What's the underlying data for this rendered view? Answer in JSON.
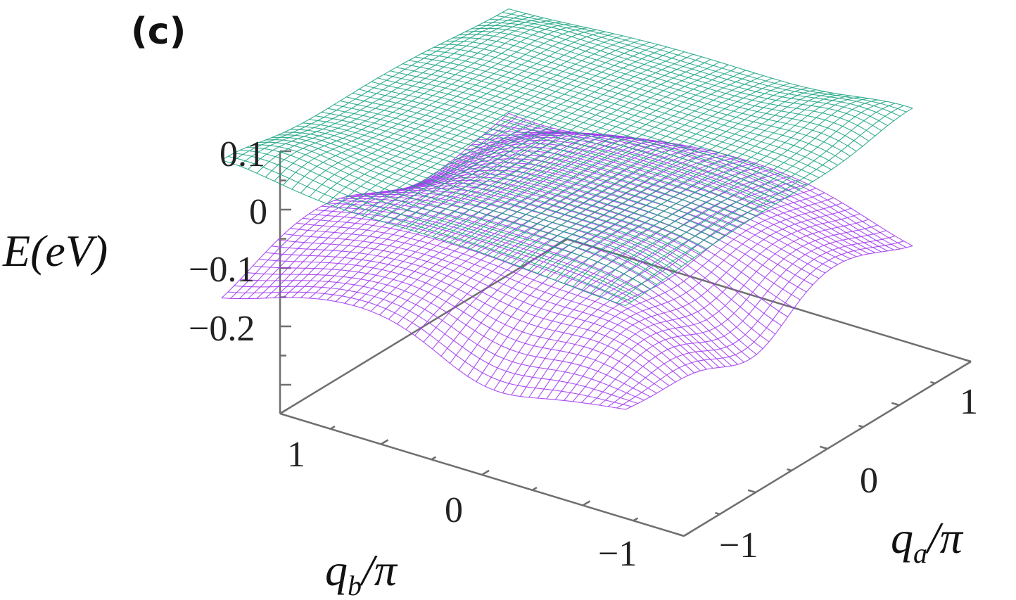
{
  "panel_label": "(c)",
  "chart_data": {
    "type": "surface",
    "zlabel": "E(eV)",
    "xlabel": "q_b/π",
    "ylabel": "q_a/π",
    "z_ticks": [
      "0.1",
      "0",
      "−0.1",
      "−0.2"
    ],
    "z_tick_values": [
      0.1,
      0,
      -0.1,
      -0.2
    ],
    "zlim": [
      -0.3,
      0.1
    ],
    "qb_ticks": [
      "1",
      "0",
      "−1"
    ],
    "qb_tick_values": [
      1,
      0,
      -1
    ],
    "qa_ticks": [
      "1",
      "0",
      "−1"
    ],
    "qa_tick_values": [
      1,
      0,
      -1
    ],
    "xlim": [
      -1,
      1
    ],
    "ylim": [
      -1,
      1
    ],
    "grid": false,
    "series": [
      {
        "band": "upper",
        "color": "#1fa584",
        "z_center": 0.12,
        "z_corners": 0.09
      },
      {
        "band": "lower",
        "color": "#a23cf0",
        "z_center": -0.02,
        "z_corners": -0.1,
        "z_min": -0.26
      }
    ]
  }
}
